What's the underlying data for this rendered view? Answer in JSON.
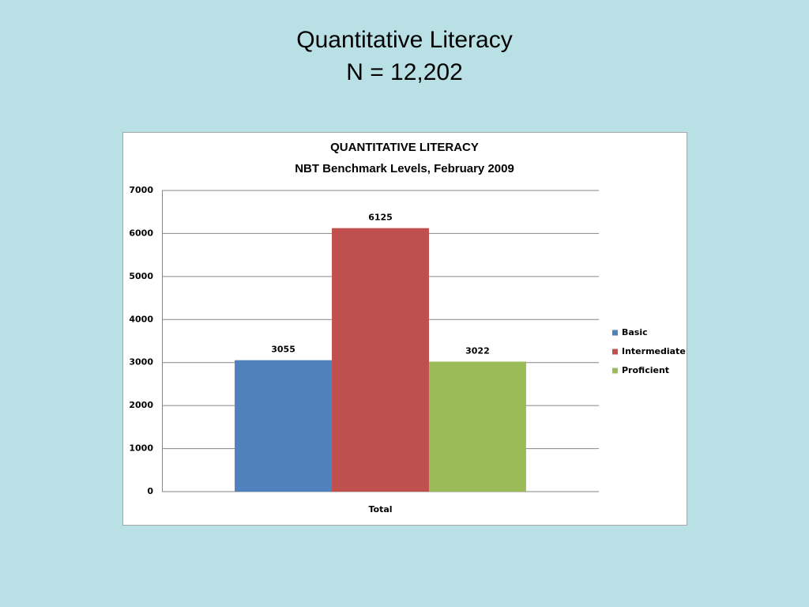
{
  "heading": [
    "Quantitative Literacy",
    "N = 12,202"
  ],
  "chart_data": {
    "type": "bar",
    "title": [
      "QUANTITATIVE LITERACY",
      "NBT Benchmark Levels, February 2009"
    ],
    "categories": [
      "Total"
    ],
    "series": [
      {
        "name": "Basic",
        "color": "#4f81bd",
        "values": [
          3055
        ]
      },
      {
        "name": "Intermediate",
        "color": "#c0504d",
        "values": [
          6125
        ]
      },
      {
        "name": "Proficient",
        "color": "#9bbb59",
        "values": [
          3022
        ]
      }
    ],
    "ylim": [
      0,
      7000
    ],
    "yticks": [
      0,
      1000,
      2000,
      3000,
      4000,
      5000,
      6000,
      7000
    ],
    "grid": true,
    "legend": "right",
    "data_labels": true
  }
}
